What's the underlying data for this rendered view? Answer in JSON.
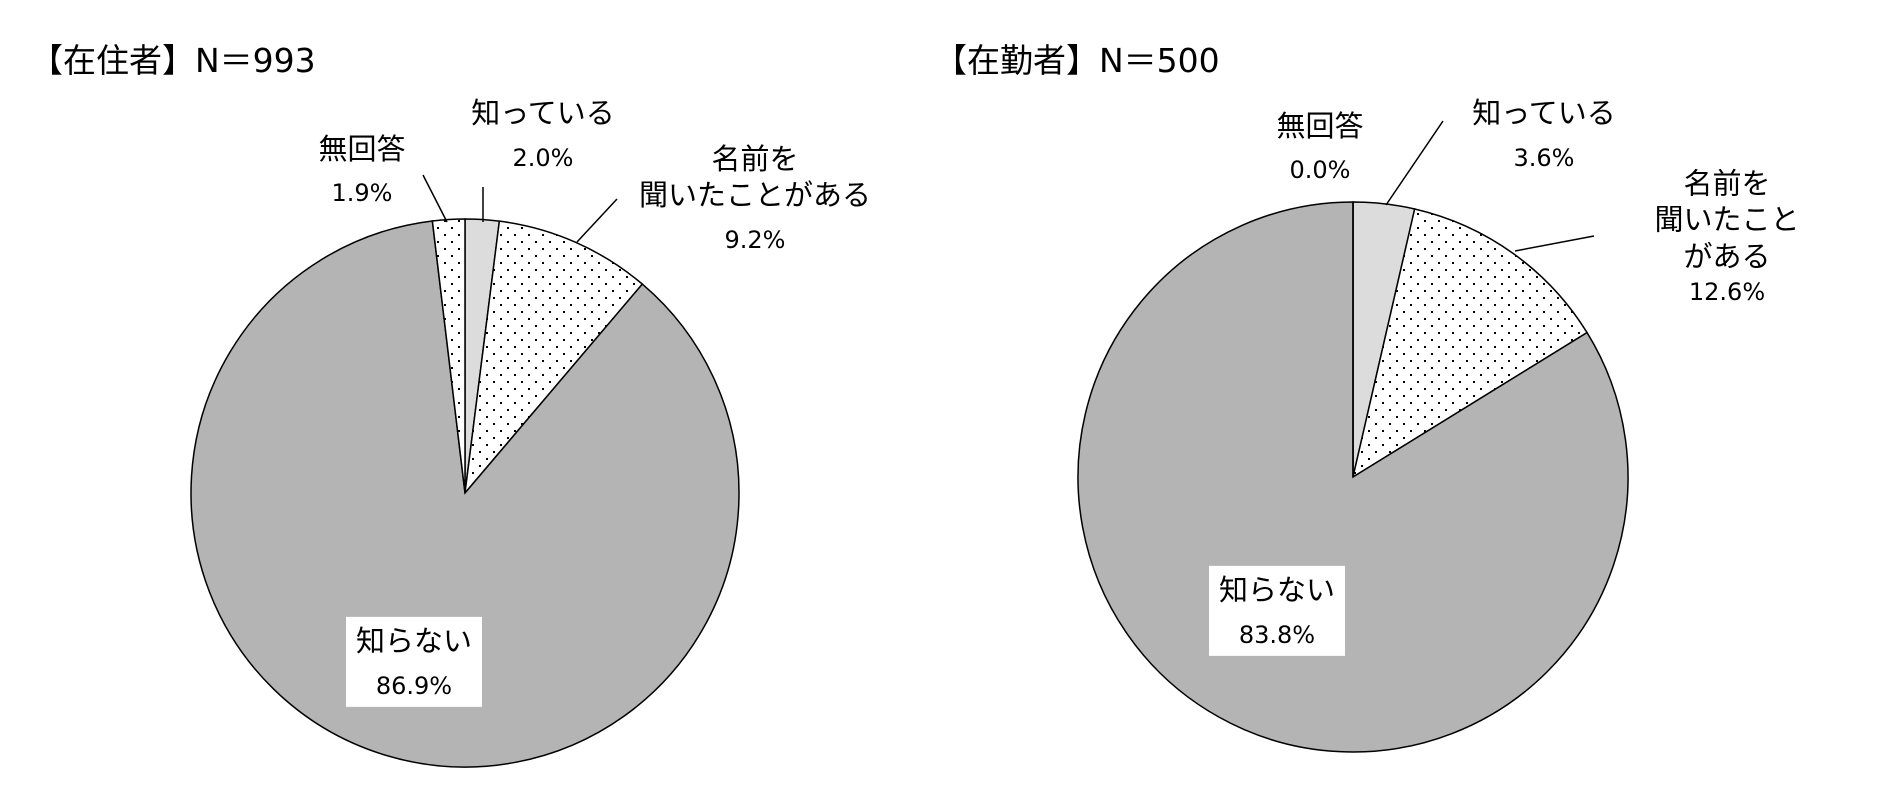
{
  "chart_data": [
    {
      "type": "pie",
      "title": "【在住者】N＝993",
      "categories": [
        "知っている",
        "名前を\n聞いたことがある",
        "知らない",
        "無回答"
      ],
      "values": [
        2.0,
        9.2,
        86.9,
        1.9
      ],
      "value_labels": [
        "2.0%",
        "9.2%",
        "86.9%",
        "1.9%"
      ],
      "colors": [
        "#dcdcdc",
        "#ffffff",
        "#b4b4b4",
        "#ffffff"
      ],
      "patterns": [
        "solid",
        "dots",
        "solid",
        "dots"
      ]
    },
    {
      "type": "pie",
      "title": "【在勤者】N＝500",
      "categories": [
        "知っている",
        "名前を\n聞いたことがある",
        "知らない",
        "無回答"
      ],
      "values": [
        3.6,
        12.6,
        83.8,
        0.0
      ],
      "value_labels": [
        "3.6%",
        "12.6%",
        "83.8%",
        "0.0%"
      ],
      "colors": [
        "#dcdcdc",
        "#ffffff",
        "#b4b4b4",
        "#ffffff"
      ],
      "patterns": [
        "solid",
        "dots",
        "solid",
        "dots"
      ]
    }
  ]
}
